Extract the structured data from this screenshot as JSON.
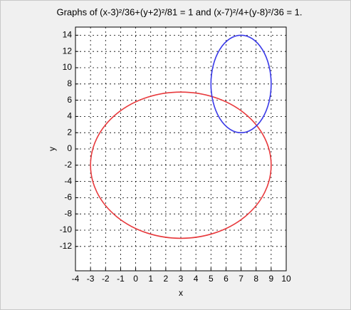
{
  "chart_data": {
    "type": "ellipse",
    "title": "Graphs of (x-3)²/36+(y+2)²/81 = 1 and (x-7)²/4+(y-8)²/36 = 1.",
    "x_label": "x",
    "y_label": "y",
    "xlim": [
      -4,
      10
    ],
    "xticks": [
      -4,
      -3,
      -2,
      -1,
      0,
      1,
      2,
      3,
      4,
      5,
      6,
      7,
      8,
      9,
      10
    ],
    "ylim": [
      -15,
      15
    ],
    "yticks": [
      -12,
      -10,
      -8,
      -6,
      -4,
      -2,
      0,
      2,
      4,
      6,
      8,
      10,
      12,
      14
    ],
    "grid": true,
    "series": [
      {
        "color": "#e8393c",
        "center": [
          3,
          -2
        ],
        "radii": [
          6,
          9
        ]
      },
      {
        "color": "#3a3ae8",
        "center": [
          7,
          8
        ],
        "radii": [
          2,
          6
        ]
      }
    ]
  }
}
